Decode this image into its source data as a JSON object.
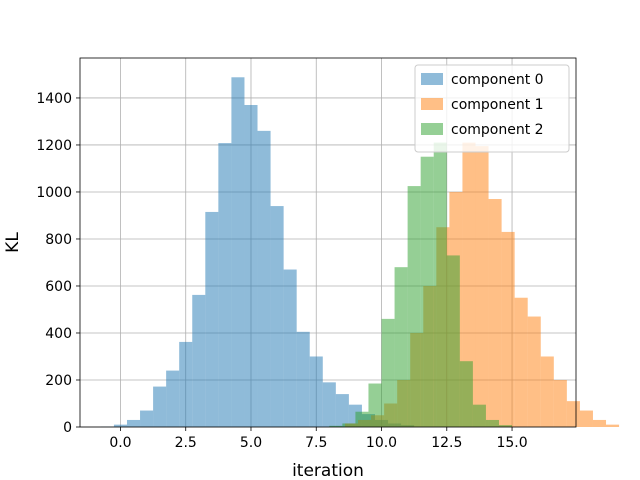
{
  "chart_data": {
    "type": "histogram",
    "xlabel": "iteration",
    "ylabel": "KL",
    "xlim": [
      -1.55,
      17.45
    ],
    "ylim": [
      0,
      1570
    ],
    "xticks": [
      0.0,
      2.5,
      5.0,
      7.5,
      10.0,
      12.5,
      15.0
    ],
    "xtick_labels": [
      "0.0",
      "2.5",
      "5.0",
      "7.5",
      "10.0",
      "12.5",
      "15.0"
    ],
    "yticks": [
      0,
      200,
      400,
      600,
      800,
      1000,
      1200,
      1400
    ],
    "ytick_labels": [
      "0",
      "200",
      "400",
      "600",
      "800",
      "1000",
      "1200",
      "1400"
    ],
    "grid": true,
    "legend_position": "top-right",
    "series": [
      {
        "name": "component 0",
        "color": "#1f77b4",
        "opacity": 0.5,
        "bin_start": -0.75,
        "bin_width": 0.5,
        "counts": [
          2,
          10,
          30,
          70,
          172,
          240,
          362,
          562,
          915,
          1208,
          1488,
          1370,
          1260,
          940,
          670,
          405,
          300,
          190,
          140,
          95,
          55,
          30,
          15,
          8
        ]
      },
      {
        "name": "component 1",
        "color": "#ff7f0e",
        "opacity": 0.5,
        "bin_start": 8.6,
        "bin_width": 0.5,
        "counts": [
          15,
          30,
          50,
          100,
          200,
          400,
          600,
          850,
          1000,
          1210,
          1195,
          970,
          830,
          550,
          470,
          300,
          200,
          110,
          70,
          30,
          10
        ]
      },
      {
        "name": "component 2",
        "color": "#2ca02c",
        "opacity": 0.5,
        "bin_start": 8.0,
        "bin_width": 0.5,
        "counts": [
          5,
          15,
          65,
          185,
          460,
          680,
          1025,
          1150,
          1210,
          730,
          280,
          95,
          30,
          8
        ]
      }
    ]
  }
}
